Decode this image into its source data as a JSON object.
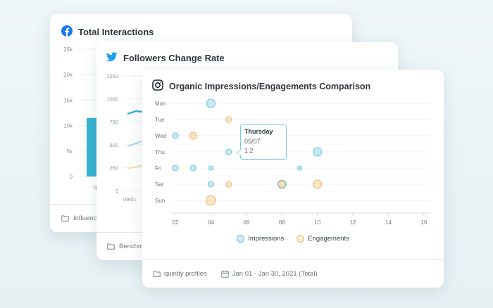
{
  "cards": {
    "facebook": {
      "title": "Total Interactions",
      "y_ticks": [
        "25k",
        "20k",
        "15k",
        "10k",
        "5k",
        "0"
      ],
      "x_tick_partial": "q",
      "footer_folder": "Influence",
      "icon": "facebook-icon",
      "brand_color": "#1877f2",
      "bar_value_k": 11.5
    },
    "twitter": {
      "title": "Followers Change Rate",
      "y_ticks": [
        "1250",
        "1000",
        "750",
        "500",
        "250",
        "0"
      ],
      "x_tick_partial": "09/01",
      "footer_folder": "Benchma",
      "icon": "twitter-icon",
      "brand_color": "#1da1f2"
    },
    "instagram": {
      "title": "Organic Impressions/Engagements Comparison",
      "footer_folder": "quintly profiles",
      "footer_date": "Jan 01 - Jan 30, 2021 (Total)",
      "icon": "instagram-icon",
      "legend": [
        {
          "label": "Impressions",
          "color": "#9fd8ea",
          "stroke": "#6cc3dd"
        },
        {
          "label": "Engagements",
          "color": "#f6dcae",
          "stroke": "#e9b870"
        }
      ],
      "tooltip": {
        "title": "Thursday",
        "date": "05/07",
        "value": "1.2"
      }
    }
  },
  "chart_data": {
    "type": "scatter",
    "title": "Organic Impressions/Engagements Comparison",
    "categories": [
      "Mon",
      "Tue",
      "Wed",
      "Thu",
      "Fri",
      "Sat",
      "Sun"
    ],
    "x_ticks": [
      "02",
      "04",
      "06",
      "08",
      "10",
      "12",
      "14",
      "16"
    ],
    "xlim": [
      1.5,
      16
    ],
    "series": [
      {
        "name": "Impressions",
        "points": [
          {
            "day": "Mon",
            "x": 4,
            "size": 6
          },
          {
            "day": "Wed",
            "x": 2,
            "size": 4
          },
          {
            "day": "Thu",
            "x": 5,
            "size": 4
          },
          {
            "day": "Thu",
            "x": 7,
            "size": 3
          },
          {
            "day": "Thu",
            "x": 10,
            "size": 6
          },
          {
            "day": "Fri",
            "x": 2,
            "size": 4
          },
          {
            "day": "Fri",
            "x": 3,
            "size": 4
          },
          {
            "day": "Fri",
            "x": 4,
            "size": 3
          },
          {
            "day": "Fri",
            "x": 9,
            "size": 3
          },
          {
            "day": "Sat",
            "x": 4,
            "size": 4
          },
          {
            "day": "Sat",
            "x": 8,
            "size": 6
          }
        ]
      },
      {
        "name": "Engagements",
        "points": [
          {
            "day": "Tue",
            "x": 5,
            "size": 4
          },
          {
            "day": "Wed",
            "x": 3,
            "size": 5
          },
          {
            "day": "Sat",
            "x": 5,
            "size": 4
          },
          {
            "day": "Sat",
            "x": 8,
            "size": 5
          },
          {
            "day": "Sat",
            "x": 10,
            "size": 6
          },
          {
            "day": "Sun",
            "x": 4,
            "size": 7
          }
        ]
      }
    ]
  }
}
